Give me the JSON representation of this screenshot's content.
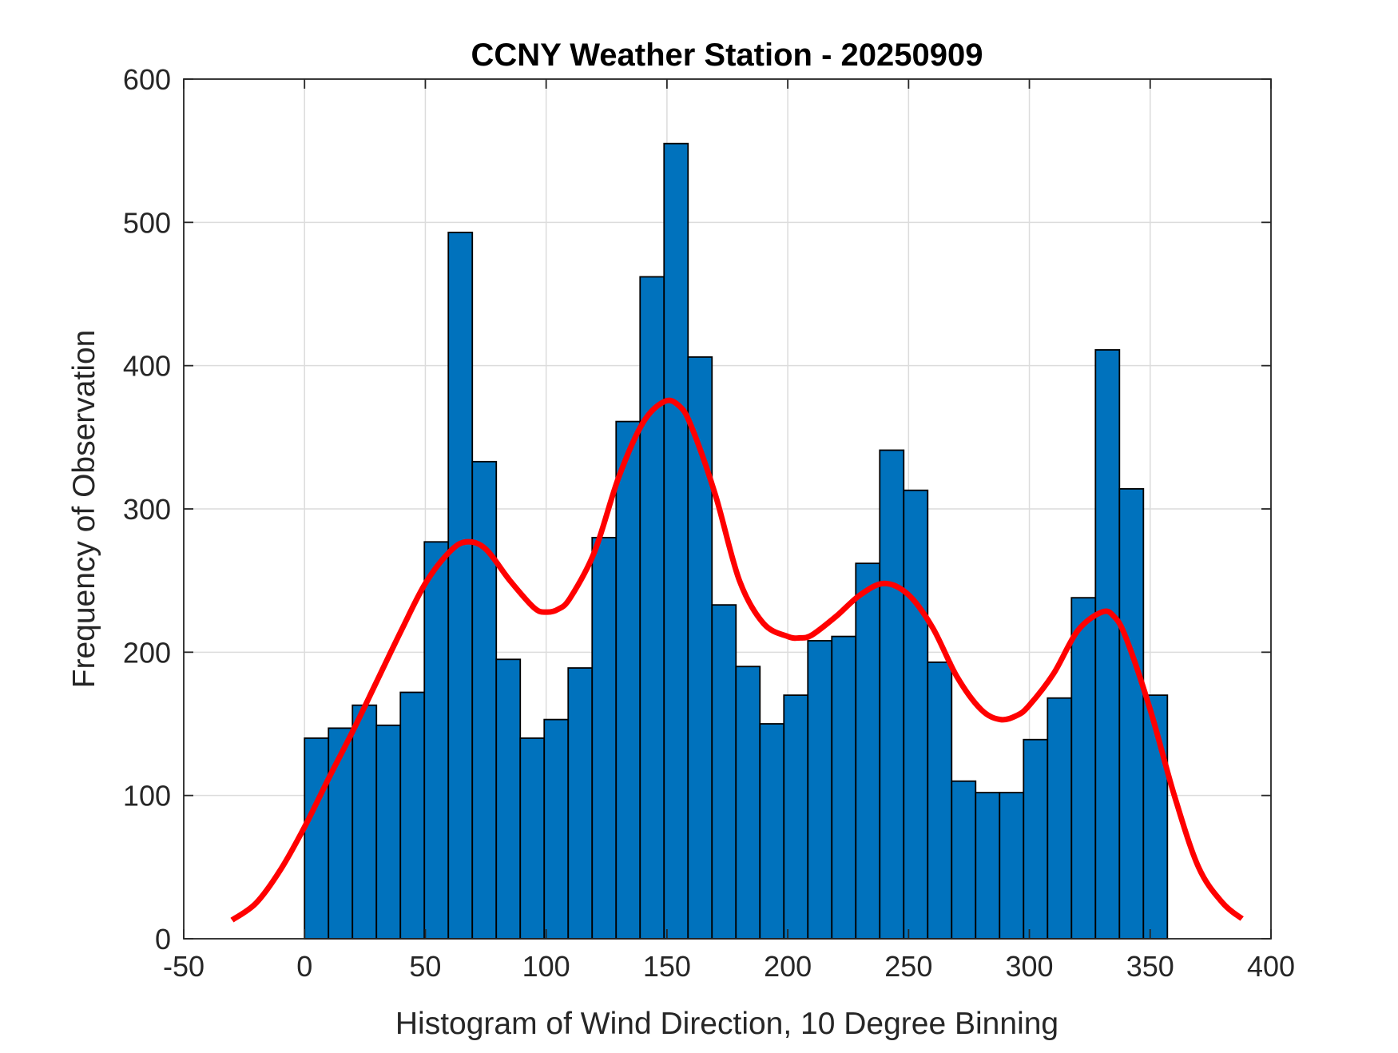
{
  "chart_data": {
    "type": "bar",
    "title": "CCNY Weather Station - 20250909",
    "xlabel": "Histogram of Wind Direction, 10 Degree Binning",
    "ylabel": "Frequency of Observation",
    "xlim": [
      -50,
      400
    ],
    "ylim": [
      0,
      600
    ],
    "xticks": [
      -50,
      0,
      50,
      100,
      150,
      200,
      250,
      300,
      350,
      400
    ],
    "yticks": [
      0,
      100,
      200,
      300,
      400,
      500,
      600
    ],
    "grid": true,
    "bin_start": 0,
    "bin_width": 9.92,
    "values": [
      140,
      147,
      163,
      149,
      172,
      277,
      493,
      333,
      195,
      140,
      153,
      189,
      280,
      361,
      462,
      555,
      406,
      233,
      190,
      150,
      170,
      208,
      211,
      262,
      341,
      313,
      193,
      110,
      102,
      102,
      139,
      168,
      238,
      411,
      314,
      170
    ],
    "bar_color": "#0072BD",
    "curve": {
      "color": "#FF0000",
      "x": [
        -30,
        -20,
        -10,
        0,
        10,
        20,
        30,
        40,
        50,
        60,
        67,
        75,
        85,
        95,
        100,
        105,
        110,
        120,
        130,
        140,
        149,
        155,
        160,
        170,
        180,
        190,
        200,
        205,
        210,
        220,
        230,
        240,
        250,
        260,
        270,
        280,
        288,
        295,
        300,
        310,
        320,
        330,
        335,
        340,
        350,
        360,
        370,
        380,
        388
      ],
      "y": [
        13,
        25,
        48,
        78,
        112,
        145,
        180,
        215,
        248,
        270,
        277,
        272,
        250,
        231,
        228,
        230,
        238,
        270,
        322,
        360,
        375,
        372,
        358,
        310,
        250,
        220,
        211,
        210,
        212,
        225,
        240,
        248,
        240,
        217,
        183,
        160,
        153,
        156,
        163,
        185,
        215,
        228,
        225,
        210,
        160,
        100,
        50,
        25,
        14
      ]
    }
  }
}
